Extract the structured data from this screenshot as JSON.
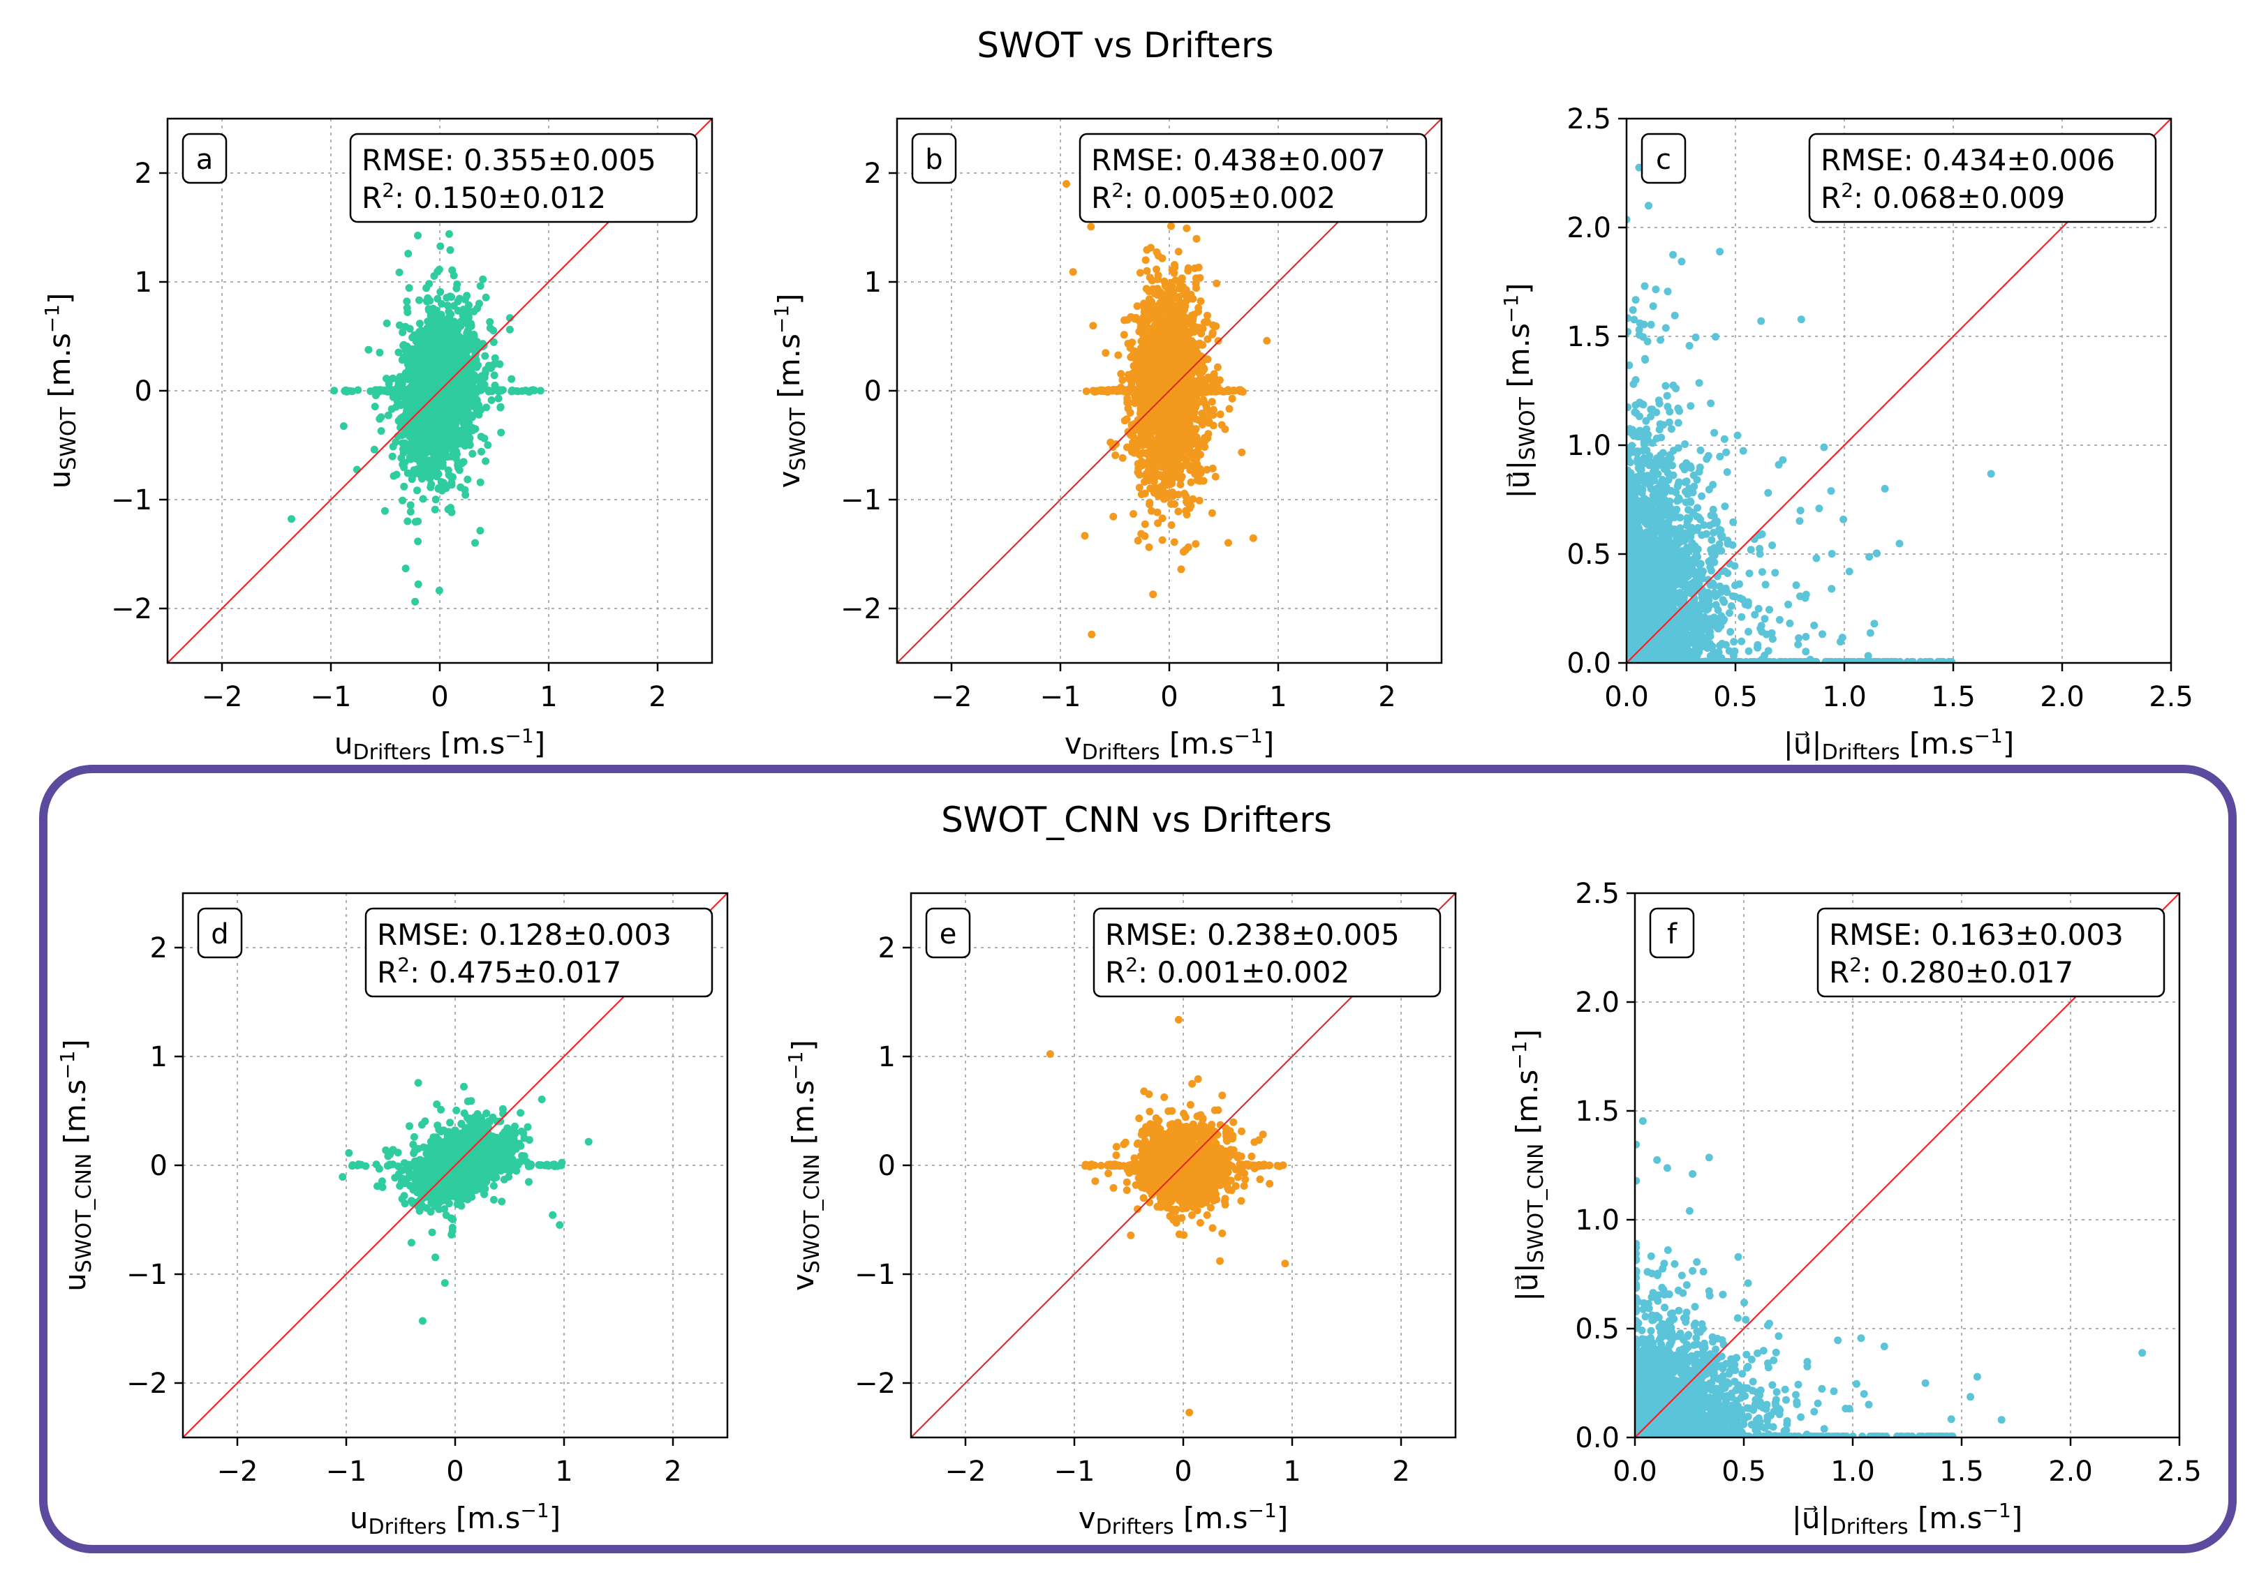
{
  "figure": {
    "top_title": "SWOT vs Drifters",
    "bottom_title": "SWOT_CNN vs Drifters",
    "frame_color": "#5b4a9e"
  },
  "colors": {
    "u": "#2ecc9f",
    "v": "#f39a1e",
    "mag": "#5bc4d8",
    "identity_line": "#e8262b"
  },
  "chart_data": [
    {
      "id": "a",
      "type": "scatter",
      "panel_label": "a",
      "variant": "component",
      "x_sym": "u",
      "x_sub": "Drifters",
      "y_sym": "u",
      "y_sub": "SWOT",
      "units": " [m.s",
      "units_exp": "−1",
      "units_close": "]",
      "xlim": [
        -2.5,
        2.5
      ],
      "ylim": [
        -2.5,
        2.5
      ],
      "xticks": [
        -2,
        -1,
        0,
        1,
        2
      ],
      "yticks": [
        -2,
        -1,
        0,
        1,
        2
      ],
      "tick_labels_x": [
        "−2",
        "−1",
        "0",
        "1",
        "2"
      ],
      "tick_labels_y": [
        "−2",
        "−1",
        "0",
        "1",
        "2"
      ],
      "stats_rmse": "RMSE: 0.355±0.005",
      "stats_r2_prefix": " R",
      "stats_r2_exp": "2",
      "stats_r2_value": ": 0.150±0.012",
      "color_key": "u",
      "grid": true,
      "reference_line": "y = x",
      "cloud": {
        "cx": 0.0,
        "cy": 0.0,
        "sx": 0.17,
        "sy": 0.38,
        "corr": 0.35,
        "n": 1900,
        "sy_tail": 0.6
      },
      "zero_line_x": [
        -0.6,
        1.0
      ]
    },
    {
      "id": "b",
      "type": "scatter",
      "panel_label": "b",
      "variant": "component",
      "x_sym": "v",
      "x_sub": "Drifters",
      "y_sym": "v",
      "y_sub": "SWOT",
      "units": " [m.s",
      "units_exp": "−1",
      "units_close": "]",
      "xlim": [
        -2.5,
        2.5
      ],
      "ylim": [
        -2.5,
        2.5
      ],
      "xticks": [
        -2,
        -1,
        0,
        1,
        2
      ],
      "yticks": [
        -2,
        -1,
        0,
        1,
        2
      ],
      "tick_labels_x": [
        "−2",
        "−1",
        "0",
        "1",
        "2"
      ],
      "tick_labels_y": [
        "−2",
        "−1",
        "0",
        "1",
        "2"
      ],
      "stats_rmse": "RMSE: 0.438±0.007",
      "stats_r2_prefix": " R",
      "stats_r2_exp": "2",
      "stats_r2_value": ": 0.005±0.002",
      "color_key": "v",
      "grid": true,
      "reference_line": "y = x",
      "cloud": {
        "cx": 0.0,
        "cy": 0.0,
        "sx": 0.16,
        "sy": 0.45,
        "corr": 0.05,
        "n": 1900,
        "sy_tail": 0.7
      },
      "zero_line_x": [
        -0.7,
        0.7
      ]
    },
    {
      "id": "c",
      "type": "scatter",
      "panel_label": "c",
      "variant": "magnitude",
      "x_sym": "|u⃗|",
      "x_sub": "Drifters",
      "y_sym": "|u⃗|",
      "y_sub": "SWOT",
      "units": " [m.s",
      "units_exp": "−1",
      "units_close": "]",
      "xlim": [
        0,
        2.5
      ],
      "ylim": [
        0,
        2.5
      ],
      "xticks": [
        0,
        0.5,
        1,
        1.5,
        2,
        2.5
      ],
      "yticks": [
        0,
        0.5,
        1,
        1.5,
        2,
        2.5
      ],
      "tick_labels_x": [
        "0.0",
        "0.5",
        "1.0",
        "1.5",
        "2.0",
        "2.5"
      ],
      "tick_labels_y": [
        "0.0",
        "0.5",
        "1.0",
        "1.5",
        "2.0",
        "2.5"
      ],
      "stats_rmse": "RMSE: 0.434±0.006",
      "stats_r2_prefix": " R",
      "stats_r2_exp": "2",
      "stats_r2_value": ": 0.068±0.009",
      "color_key": "mag",
      "grid": true,
      "reference_line": "y = x",
      "cloud": {
        "sx": 0.18,
        "sy": 0.42,
        "n": 2200,
        "tail": 0.12
      },
      "zero_line_x": [
        0.0,
        1.5
      ]
    },
    {
      "id": "d",
      "type": "scatter",
      "panel_label": "d",
      "variant": "component",
      "x_sym": "u",
      "x_sub": "Drifters",
      "y_sym": "u",
      "y_sub": "SWOT_CNN",
      "units": " [m.s",
      "units_exp": "−1",
      "units_close": "]",
      "xlim": [
        -2.5,
        2.5
      ],
      "ylim": [
        -2.5,
        2.5
      ],
      "xticks": [
        -2,
        -1,
        0,
        1,
        2
      ],
      "yticks": [
        -2,
        -1,
        0,
        1,
        2
      ],
      "tick_labels_x": [
        "−2",
        "−1",
        "0",
        "1",
        "2"
      ],
      "tick_labels_y": [
        "−2",
        "−1",
        "0",
        "1",
        "2"
      ],
      "stats_rmse": "RMSE: 0.128±0.003",
      "stats_r2_prefix": " R",
      "stats_r2_exp": "2",
      "stats_r2_value": ": 0.475±0.017",
      "color_key": "u",
      "grid": true,
      "reference_line": "y = x",
      "cloud": {
        "cx": 0.05,
        "cy": 0.02,
        "sx": 0.2,
        "sy": 0.16,
        "corr": 0.75,
        "n": 1800,
        "sy_tail": 0.35
      },
      "zero_line_x": [
        -0.5,
        1.0
      ]
    },
    {
      "id": "e",
      "type": "scatter",
      "panel_label": "e",
      "variant": "component",
      "x_sym": "v",
      "x_sub": "Drifters",
      "y_sym": "v",
      "y_sub": "SWOT_CNN",
      "units": " [m.s",
      "units_exp": "−1",
      "units_close": "]",
      "xlim": [
        -2.5,
        2.5
      ],
      "ylim": [
        -2.5,
        2.5
      ],
      "xticks": [
        -2,
        -1,
        0,
        1,
        2
      ],
      "yticks": [
        -2,
        -1,
        0,
        1,
        2
      ],
      "tick_labels_x": [
        "−2",
        "−1",
        "0",
        "1",
        "2"
      ],
      "tick_labels_y": [
        "−2",
        "−1",
        "0",
        "1",
        "2"
      ],
      "stats_rmse": "RMSE: 0.238±0.005",
      "stats_r2_prefix": " R",
      "stats_r2_exp": "2",
      "stats_r2_value": ": 0.001±0.002",
      "color_key": "v",
      "grid": true,
      "reference_line": "y = x",
      "cloud": {
        "cx": 0.0,
        "cy": 0.0,
        "sx": 0.18,
        "sy": 0.16,
        "corr": 0.05,
        "n": 1700,
        "sy_tail": 0.35
      },
      "zero_line_x": [
        -0.7,
        0.9
      ]
    },
    {
      "id": "f",
      "type": "scatter",
      "panel_label": "f",
      "variant": "magnitude",
      "x_sym": "|u⃗|",
      "x_sub": "Drifters",
      "y_sym": "|u⃗|",
      "y_sub": "SWOT_CNN",
      "units": " [m.s",
      "units_exp": "−1",
      "units_close": "]",
      "xlim": [
        0,
        2.5
      ],
      "ylim": [
        0,
        2.5
      ],
      "xticks": [
        0,
        0.5,
        1,
        1.5,
        2,
        2.5
      ],
      "yticks": [
        0,
        0.5,
        1,
        1.5,
        2,
        2.5
      ],
      "tick_labels_x": [
        "0.0",
        "0.5",
        "1.0",
        "1.5",
        "2.0",
        "2.5"
      ],
      "tick_labels_y": [
        "0.0",
        "0.5",
        "1.0",
        "1.5",
        "2.0",
        "2.5"
      ],
      "stats_rmse": "RMSE: 0.163±0.003",
      "stats_r2_prefix": " R",
      "stats_r2_exp": "2",
      "stats_r2_value": ": 0.280±0.017",
      "color_key": "mag",
      "grid": true,
      "reference_line": "y = x",
      "cloud": {
        "sx": 0.22,
        "sy": 0.22,
        "n": 1900,
        "tail": 0.08
      },
      "zero_line_x": [
        0.0,
        1.5
      ]
    }
  ]
}
